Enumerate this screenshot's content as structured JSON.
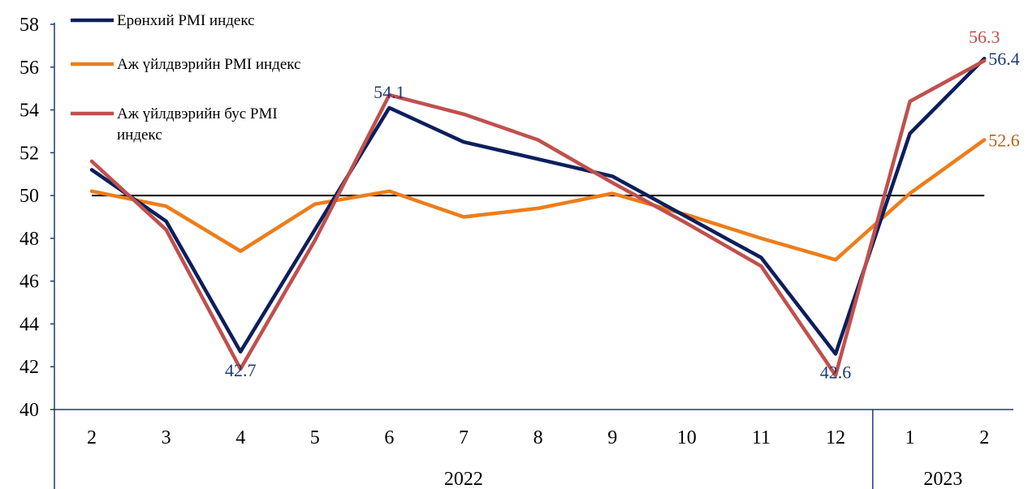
{
  "chart_data": {
    "type": "line",
    "categories": [
      "2",
      "3",
      "4",
      "5",
      "6",
      "7",
      "8",
      "9",
      "10",
      "11",
      "12",
      "1",
      "2"
    ],
    "groups": [
      {
        "label": "2022",
        "count": 11
      },
      {
        "label": "2023",
        "count": 2
      }
    ],
    "yticks": [
      "40",
      "42",
      "44",
      "46",
      "48",
      "50",
      "52",
      "54",
      "56",
      "58"
    ],
    "ylim": [
      40,
      58
    ],
    "reference_line": 50,
    "legend_position": "top-left",
    "series": [
      {
        "name": "Ерөнхий PMI индекс",
        "color": "#0b1f5c",
        "values": [
          51.2,
          48.8,
          42.7,
          48.4,
          54.1,
          52.5,
          51.7,
          50.9,
          49.0,
          47.1,
          42.6,
          52.9,
          56.4
        ]
      },
      {
        "name": "Аж үйлдвэрийн PMI индекс",
        "color": "#ed7d1a",
        "values": [
          50.2,
          49.5,
          47.4,
          49.6,
          50.2,
          49.0,
          49.4,
          50.1,
          49.1,
          48.0,
          47.0,
          50.1,
          52.6
        ]
      },
      {
        "name": "Аж үйлдвэрийн бус PMI индекс",
        "color": "#c0504d",
        "values": [
          51.6,
          48.4,
          41.9,
          47.9,
          54.7,
          53.8,
          52.6,
          50.6,
          48.7,
          46.7,
          41.6,
          54.4,
          56.3
        ]
      }
    ],
    "data_labels": [
      {
        "series": 0,
        "index": 4,
        "text": "54.1",
        "color": "#1f3a78",
        "pos": "above"
      },
      {
        "series": 0,
        "index": 2,
        "text": "42.7",
        "color": "#1f3a78",
        "pos": "below"
      },
      {
        "series": 0,
        "index": 10,
        "text": "42.6",
        "color": "#1f3a78",
        "pos": "below"
      },
      {
        "series": 0,
        "index": 12,
        "text": "56.4",
        "color": "#1f3a78",
        "pos": "right"
      },
      {
        "series": 1,
        "index": 12,
        "text": "52.6",
        "color": "#b8621c",
        "pos": "right"
      },
      {
        "series": 2,
        "index": 12,
        "text": "56.3",
        "color": "#c0504d",
        "pos": "above"
      }
    ]
  }
}
